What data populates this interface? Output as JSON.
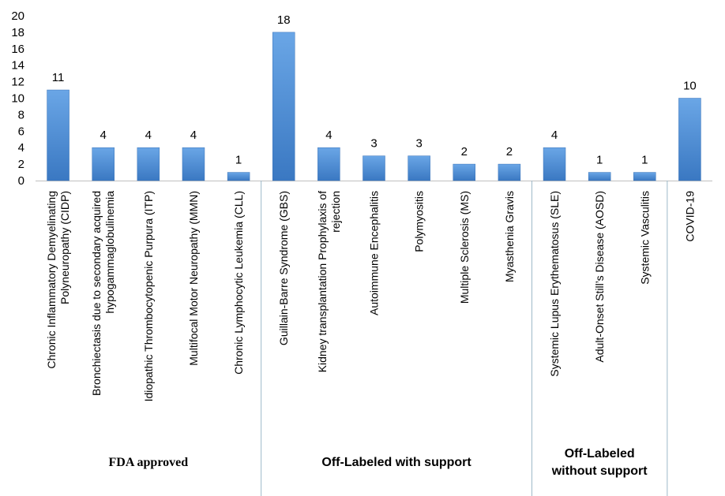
{
  "chart_data": {
    "type": "bar",
    "categories": [
      "Chronic Inflammatory Demyelinating Polyneuropathy (CIDP)",
      "Bronchiectasis due to secondary acquired hypogammaglobulinemia",
      "Idiopathic Thrombocytopenic Purpura (ITP)",
      "Multifocal Motor Neuropathy (MMN)",
      "Chronic Lymphocytic Leukemia (CLL)",
      "Guillain-Barre Syndrome (GBS)",
      "Kidney transplantation Prophylaxis of rejection",
      "Autoimmune Encephalitis",
      "Polymyositis",
      "Multiple Sclerosis (MS)",
      "Myasthenia Gravis",
      "Systemic Lupus Erythematosus (SLE)",
      "Adult-Onset Still’s Disease (AOSD)",
      "Systemic Vasculitis",
      "COVID-19"
    ],
    "category_lines": [
      [
        "Chronic Inflammatory Demyelinating",
        "Polyneuropathy (CIDP)"
      ],
      [
        "Bronchiectasis due to secondary acquired",
        "hypogammaglobulinemia"
      ],
      [
        "Idiopathic Thrombocytopenic Purpura (ITP)"
      ],
      [
        "Multifocal Motor Neuropathy (MMN)"
      ],
      [
        "Chronic Lymphocytic Leukemia (CLL)"
      ],
      [
        "Guillain-Barre Syndrome (GBS)"
      ],
      [
        "Kidney transplantation Prophylaxis of",
        "rejection"
      ],
      [
        "Autoimmune Encephalitis"
      ],
      [
        "Polymyositis"
      ],
      [
        "Multiple Sclerosis (MS)"
      ],
      [
        "Myasthenia Gravis"
      ],
      [
        "Systemic Lupus Erythematosus (SLE)"
      ],
      [
        "Adult-Onset Still’s Disease (AOSD)"
      ],
      [
        "Systemic Vasculitis"
      ],
      [
        "COVID-19"
      ]
    ],
    "values": [
      11,
      4,
      4,
      4,
      1,
      18,
      4,
      3,
      3,
      2,
      2,
      4,
      1,
      1,
      10
    ],
    "ylim": [
      0,
      20
    ],
    "yticks": [
      0,
      2,
      4,
      6,
      8,
      10,
      12,
      14,
      16,
      18,
      20
    ],
    "title": "",
    "xlabel": "",
    "ylabel": "",
    "grid": false,
    "bar_color": "#4a86d0",
    "groups": [
      {
        "lines": [
          "FDA approved"
        ],
        "start": 0,
        "end": 4
      },
      {
        "lines": [
          "Off-Labeled with support"
        ],
        "start": 5,
        "end": 10
      },
      {
        "lines": [
          "Off-Labeled",
          "without support"
        ],
        "start": 11,
        "end": 13
      },
      {
        "lines": [],
        "start": 14,
        "end": 14
      }
    ]
  }
}
